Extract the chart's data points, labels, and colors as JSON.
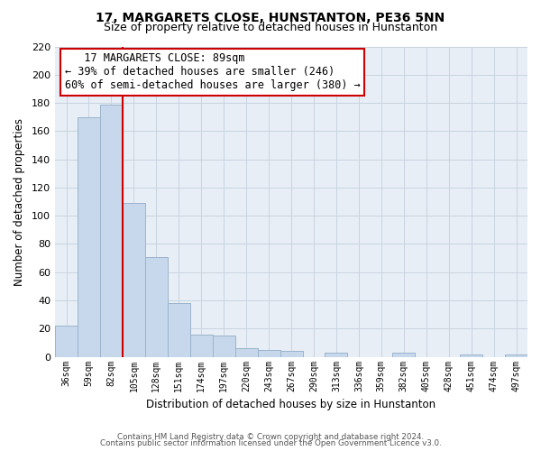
{
  "title": "17, MARGARETS CLOSE, HUNSTANTON, PE36 5NN",
  "subtitle": "Size of property relative to detached houses in Hunstanton",
  "xlabel": "Distribution of detached houses by size in Hunstanton",
  "ylabel": "Number of detached properties",
  "bar_labels": [
    "36sqm",
    "59sqm",
    "82sqm",
    "105sqm",
    "128sqm",
    "151sqm",
    "174sqm",
    "197sqm",
    "220sqm",
    "243sqm",
    "267sqm",
    "290sqm",
    "313sqm",
    "336sqm",
    "359sqm",
    "382sqm",
    "405sqm",
    "428sqm",
    "451sqm",
    "474sqm",
    "497sqm"
  ],
  "bar_values": [
    22,
    170,
    179,
    109,
    71,
    38,
    16,
    15,
    6,
    5,
    4,
    0,
    3,
    0,
    0,
    3,
    0,
    0,
    2,
    0,
    2
  ],
  "bar_color": "#c8d8ec",
  "bar_edge_color": "#9ab4cc",
  "vline_color": "#cc0000",
  "annotation_title": "17 MARGARETS CLOSE: 89sqm",
  "annotation_line1": "← 39% of detached houses are smaller (246)",
  "annotation_line2": "60% of semi-detached houses are larger (380) →",
  "annotation_box_facecolor": "#ffffff",
  "annotation_box_edgecolor": "#cc0000",
  "ylim": [
    0,
    220
  ],
  "yticks": [
    0,
    20,
    40,
    60,
    80,
    100,
    120,
    140,
    160,
    180,
    200,
    220
  ],
  "footer_line1": "Contains HM Land Registry data © Crown copyright and database right 2024.",
  "footer_line2": "Contains public sector information licensed under the Open Government Licence v3.0.",
  "bg_color": "#ffffff",
  "plot_bg_color": "#e8eef6",
  "grid_color": "#c8d4e0"
}
